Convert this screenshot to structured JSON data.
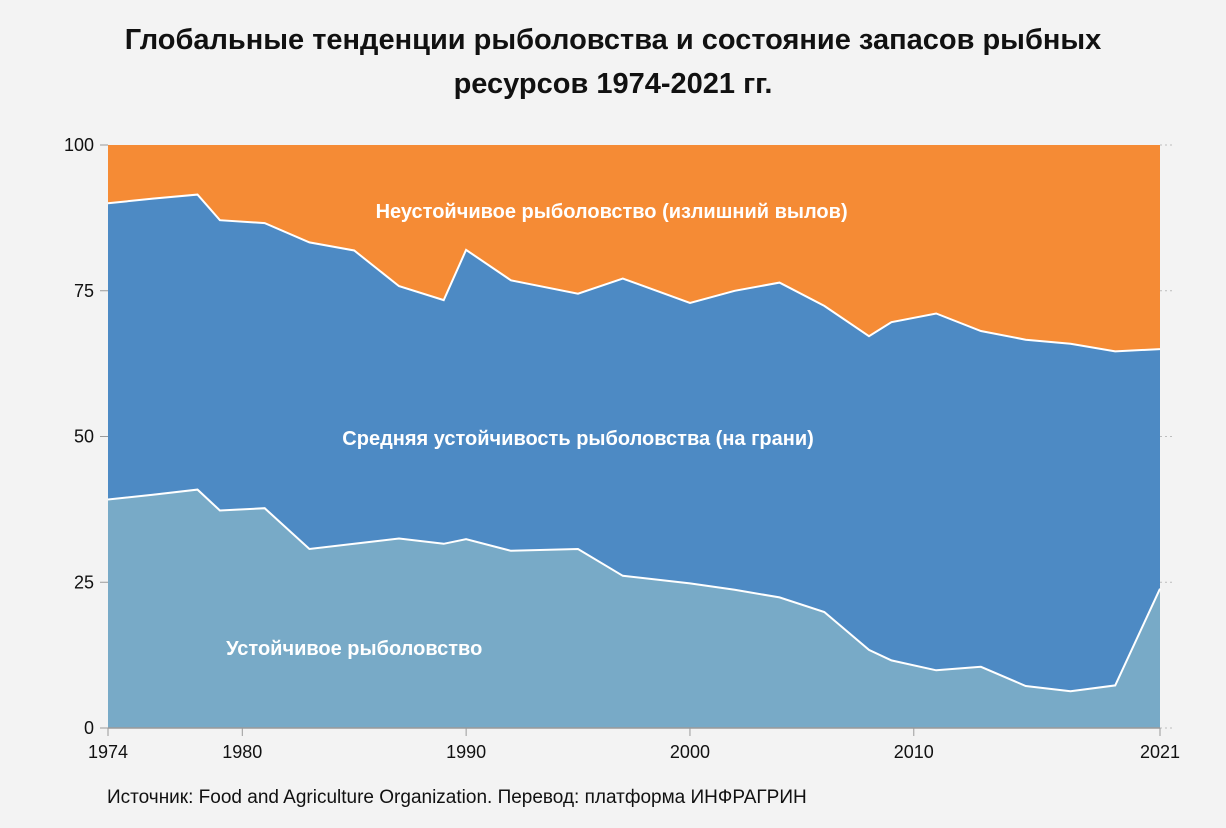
{
  "title_line1": "Глобальные тенденции рыболовства и состояние запасов рыбных",
  "title_line2": "ресурсов 1974-2021 гг.",
  "source": "Источник: Food and Agriculture Organization. Перевод:  платформа ИНФРАГРИН",
  "chart_data": {
    "type": "area",
    "stacked": true,
    "title": "Глобальные тенденции рыболовства и состояние запасов рыбных ресурсов 1974-2021 гг.",
    "xlim": [
      1974,
      2021
    ],
    "ylim": [
      0,
      100
    ],
    "x_ticks": [
      1974,
      1980,
      1990,
      2000,
      2010,
      2021
    ],
    "y_ticks": [
      0,
      25,
      50,
      75,
      100
    ],
    "x": [
      1974,
      1976,
      1978,
      1979,
      1981,
      1983,
      1985,
      1987,
      1989,
      1990,
      1992,
      1995,
      1997,
      2000,
      2002,
      2004,
      2006,
      2008,
      2009,
      2011,
      2013,
      2015,
      2017,
      2019,
      2021
    ],
    "series": [
      {
        "name": "Устойчивое рыболовство",
        "color": "#78aac7",
        "values": [
          39.2,
          40.0,
          40.9,
          37.3,
          37.7,
          30.7,
          31.6,
          32.5,
          31.6,
          32.4,
          30.4,
          30.7,
          26.1,
          24.8,
          23.7,
          22.4,
          19.9,
          13.4,
          11.6,
          9.9,
          10.5,
          7.2,
          6.3,
          7.3,
          23.9
        ],
        "label": "Устойчивое рыболовство"
      },
      {
        "name": "Средняя устойчивость рыболовства (на грани)",
        "color": "#4d8ac4",
        "values": [
          50.8,
          50.8,
          50.6,
          49.8,
          48.9,
          52.6,
          50.3,
          43.3,
          41.8,
          49.6,
          46.4,
          43.8,
          51.0,
          48.1,
          51.3,
          54.0,
          52.5,
          53.8,
          58.0,
          61.2,
          57.6,
          59.4,
          59.6,
          57.3,
          41.1
        ],
        "label": "Средняя устойчивость рыболовства (на грани)"
      },
      {
        "name": "Неустойчивое рыболовство (излишний вылов)",
        "color": "#f58b35",
        "values": [
          10.0,
          9.2,
          8.5,
          12.9,
          13.4,
          16.7,
          18.1,
          24.2,
          26.6,
          18.0,
          23.2,
          25.5,
          22.9,
          27.1,
          25.0,
          23.6,
          27.6,
          32.8,
          30.4,
          28.9,
          31.9,
          33.4,
          34.1,
          35.4,
          35.0
        ],
        "label": "Неустойчивое рыболовство (излишний вылов)"
      }
    ]
  }
}
